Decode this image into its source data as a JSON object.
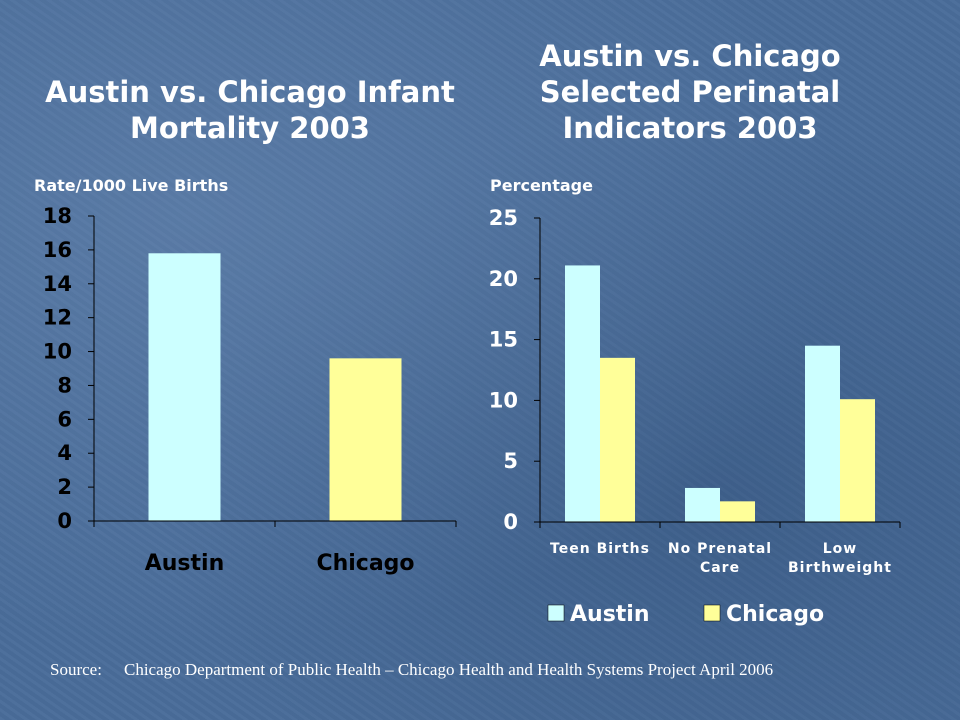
{
  "colors": {
    "austin": "#ccffff",
    "chicago": "#ffff99",
    "axis": "#000000",
    "background": "#4a6d9a",
    "text": "#ffffff"
  },
  "chart_data": [
    {
      "type": "bar",
      "title": "Austin vs. Chicago Infant Mortality 2003",
      "ylabel": "Rate/1000 Live Births",
      "categories": [
        "Austin",
        "Chicago"
      ],
      "values": [
        15.8,
        9.6
      ],
      "ylim": [
        0,
        18
      ],
      "yticks": [
        "0",
        "2",
        "4",
        "6",
        "8",
        "10",
        "12",
        "14",
        "16",
        "18"
      ],
      "bar_colors": [
        "#ccffff",
        "#ffff99"
      ],
      "grid": false,
      "legend": "none"
    },
    {
      "type": "bar",
      "title": "Austin vs. Chicago Selected Perinatal Indicators 2003",
      "ylabel": "Percentage",
      "categories": [
        "Teen Births",
        "No Prenatal Care",
        "Low Birthweight"
      ],
      "category_lines": [
        [
          "Teen Births"
        ],
        [
          "No Prenatal",
          "Care"
        ],
        [
          "Low",
          "Birthweight"
        ]
      ],
      "series": [
        {
          "name": "Austin",
          "values": [
            21.1,
            2.8,
            14.5
          ],
          "color": "#ccffff"
        },
        {
          "name": "Chicago",
          "values": [
            13.5,
            1.7,
            10.1
          ],
          "color": "#ffff99"
        }
      ],
      "ylim": [
        0,
        25
      ],
      "yticks": [
        "0",
        "5",
        "10",
        "15",
        "20",
        "25"
      ],
      "grid": false,
      "legend": "bottom"
    }
  ],
  "source": {
    "label": "Source:",
    "text": "Chicago Department of Public Health – Chicago Health and Health Systems Project April 2006"
  }
}
